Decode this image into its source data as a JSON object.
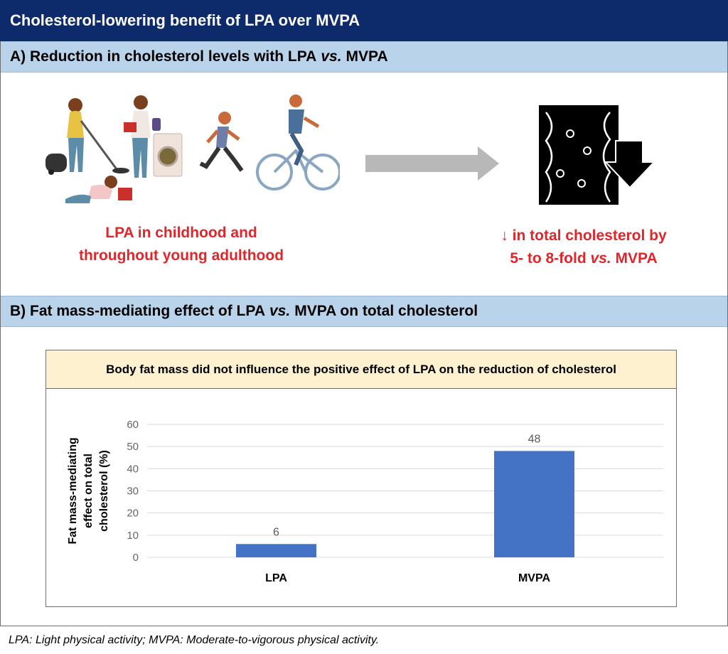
{
  "title": "Cholesterol-lowering benefit of LPA over MVPA",
  "section_a": {
    "prefix": "A)  Reduction in cholesterol levels with LPA",
    "vs": "vs.",
    "suffix": "MVPA",
    "left_caption_line1": "LPA in childhood and",
    "left_caption_line2": "throughout young adulthood",
    "right_caption_line1": "↓ in total cholesterol by",
    "right_caption_line2_prefix": "5- to 8-fold",
    "right_caption_line2_vs": "vs.",
    "right_caption_line2_suffix": "MVPA"
  },
  "section_b": {
    "prefix": "B)  Fat mass-mediating effect of LPA",
    "vs": "vs.",
    "suffix": "MVPA on total cholesterol",
    "banner": "Body fat mass did not influence the positive effect of LPA on the reduction of cholesterol"
  },
  "footer": "LPA: Light physical activity; MVPA: Moderate-to-vigorous physical activity.",
  "colors": {
    "title_bg": "#0d2a6b",
    "section_bg": "#b9d3ea",
    "accent_red": "#e0262b",
    "bar": "#4472c4",
    "arrow_gray": "#b8b8b8"
  },
  "chart_data": {
    "type": "bar",
    "categories": [
      "LPA",
      "MVPA"
    ],
    "values": [
      6,
      48
    ],
    "data_labels": [
      "6",
      "48"
    ],
    "ylabel_lines": [
      "Fat mass-mediating",
      "effect on total",
      "cholesterol (%)"
    ],
    "ylim": [
      0,
      60
    ],
    "yticks": [
      0,
      10,
      20,
      30,
      40,
      50,
      60
    ],
    "grid": true,
    "title": "Body fat mass did not influence the positive effect of LPA on the reduction of cholesterol"
  }
}
